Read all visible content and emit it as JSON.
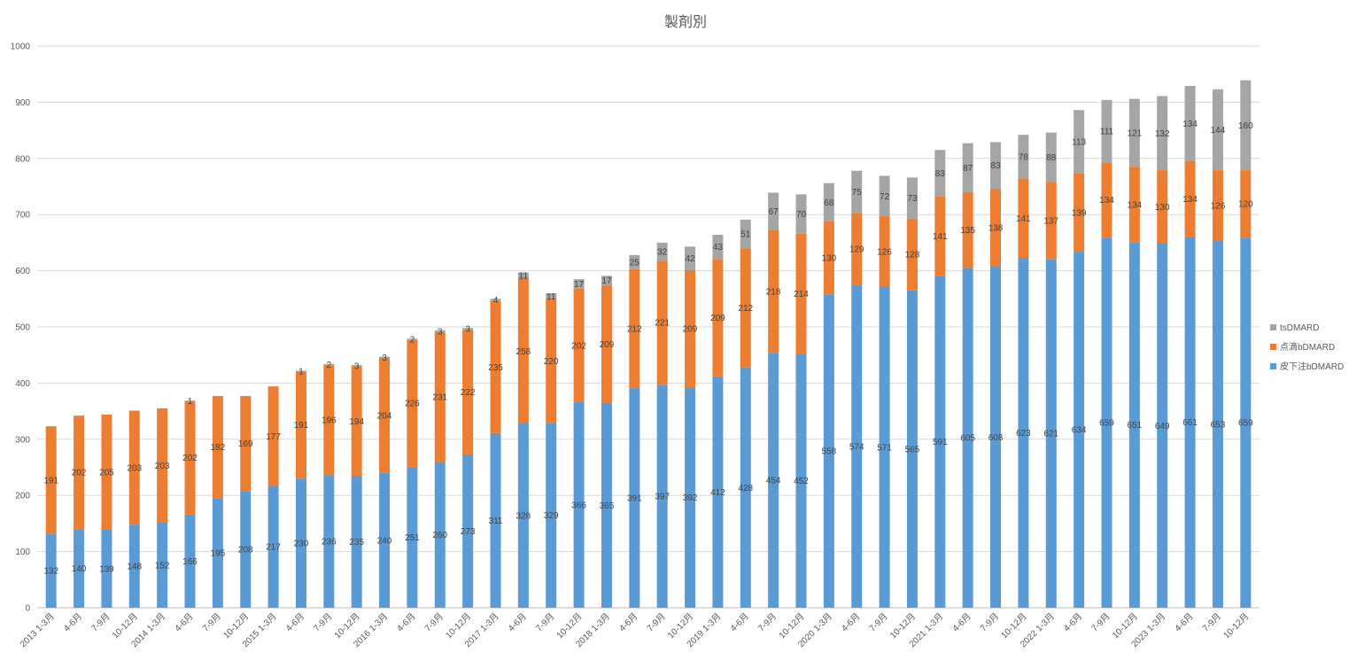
{
  "chart_data": {
    "type": "bar",
    "stacked": true,
    "title": "製剤別",
    "xlabel": "",
    "ylabel": "",
    "ylim": [
      0,
      1000
    ],
    "yticks": [
      0,
      100,
      200,
      300,
      400,
      500,
      600,
      700,
      800,
      900,
      1000
    ],
    "grid": true,
    "legend_position": "right",
    "categories": [
      "2013 1-3月",
      "4-6月",
      "7-9月",
      "10-12月",
      "2014 1-3月",
      "4-6月",
      "7-9月",
      "10-12月",
      "2015 1-3月",
      "4-6月",
      "7-9月",
      "10-12月",
      "2016 1-3月",
      "4-6月",
      "7-9月",
      "10-12月",
      "2017 1-3月",
      "4-6月",
      "7-9月",
      "10-12月",
      "2018 1-3月",
      "4-6月",
      "7-9月",
      "10-12月",
      "2019 1-3月",
      "4-6月",
      "7-9月",
      "10-12月",
      "2020 1-3月",
      "4-6月",
      "7-9月",
      "10-12月",
      "2021 1-3月",
      "4-6月",
      "7-9月",
      "10-12月",
      "2022 1-3月",
      "4-6月",
      "7-9月",
      "10-12月",
      "2023 1-3月",
      "4-6月",
      "7-9月",
      "10-12月"
    ],
    "series": [
      {
        "name": "皮下注bDMARD",
        "color": "#5b9bd5",
        "values": [
          132,
          140,
          139,
          148,
          152,
          166,
          195,
          208,
          217,
          230,
          236,
          235,
          240,
          251,
          260,
          273,
          311,
          328,
          329,
          366,
          365,
          391,
          397,
          392,
          412,
          428,
          454,
          452,
          558,
          574,
          571,
          565,
          591,
          605,
          608,
          623,
          621,
          634,
          659,
          651,
          649,
          661,
          653,
          659
        ]
      },
      {
        "name": "点滴bDMARD",
        "color": "#ed7d31",
        "values": [
          191,
          202,
          205,
          203,
          203,
          202,
          182,
          169,
          177,
          191,
          196,
          194,
          204,
          226,
          231,
          222,
          235,
          258,
          220,
          202,
          209,
          212,
          221,
          209,
          209,
          212,
          218,
          214,
          130,
          129,
          126,
          128,
          141,
          135,
          138,
          141,
          137,
          139,
          134,
          134,
          130,
          134,
          126,
          120
        ]
      },
      {
        "name": "tsDMARD",
        "color": "#a5a5a5",
        "values": [
          0,
          0,
          0,
          0,
          0,
          1,
          0,
          0,
          0,
          1,
          2,
          3,
          3,
          2,
          3,
          3,
          4,
          11,
          11,
          17,
          17,
          25,
          32,
          42,
          43,
          51,
          67,
          70,
          68,
          75,
          72,
          73,
          83,
          87,
          83,
          78,
          88,
          113,
          111,
          121,
          132,
          134,
          144,
          160
        ]
      }
    ]
  }
}
